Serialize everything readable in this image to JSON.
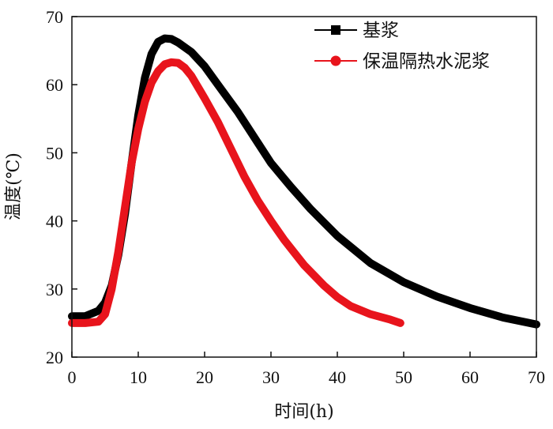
{
  "chart_data": {
    "type": "line",
    "xlabel": "时间(h)",
    "ylabel": "温度(℃)",
    "xlim": [
      0,
      70
    ],
    "ylim": [
      20,
      70
    ],
    "xticks": [
      0,
      10,
      20,
      30,
      40,
      50,
      60,
      70
    ],
    "yticks": [
      20,
      30,
      40,
      50,
      60,
      70
    ],
    "grid": false,
    "legend_position": "top-right",
    "series": [
      {
        "name": "基浆",
        "color": "#000000",
        "marker": "square",
        "x": [
          0,
          2,
          4,
          5,
          6,
          7,
          8,
          9,
          10,
          11,
          12,
          13,
          14,
          15,
          16,
          17,
          18,
          20,
          22,
          25,
          28,
          30,
          33,
          36,
          40,
          45,
          50,
          55,
          60,
          65,
          70
        ],
        "y": [
          26.0,
          26.0,
          26.8,
          28.0,
          30.5,
          35.0,
          41.0,
          48.5,
          55.5,
          61.0,
          64.5,
          66.3,
          66.8,
          66.7,
          66.2,
          65.5,
          64.8,
          62.7,
          60.0,
          56.0,
          51.5,
          48.5,
          45.0,
          41.7,
          37.8,
          33.8,
          31.0,
          28.9,
          27.2,
          25.8,
          24.8
        ]
      },
      {
        "name": "保温隔热水泥浆",
        "color": "#e8141c",
        "marker": "circle",
        "x": [
          0,
          2,
          4,
          5,
          6,
          7,
          8,
          9,
          10,
          11,
          12,
          13,
          14,
          15,
          16,
          17,
          18,
          20,
          22,
          24,
          26,
          28,
          30,
          32,
          35,
          38,
          40,
          42,
          45,
          48,
          49.5
        ],
        "y": [
          25.0,
          25.0,
          25.2,
          26.3,
          30.0,
          35.5,
          42.0,
          48.5,
          53.5,
          57.5,
          60.3,
          62.0,
          63.0,
          63.3,
          63.2,
          62.5,
          61.3,
          58.0,
          54.5,
          50.5,
          46.5,
          43.0,
          40.0,
          37.2,
          33.5,
          30.5,
          28.8,
          27.5,
          26.3,
          25.5,
          25.0
        ]
      }
    ]
  }
}
